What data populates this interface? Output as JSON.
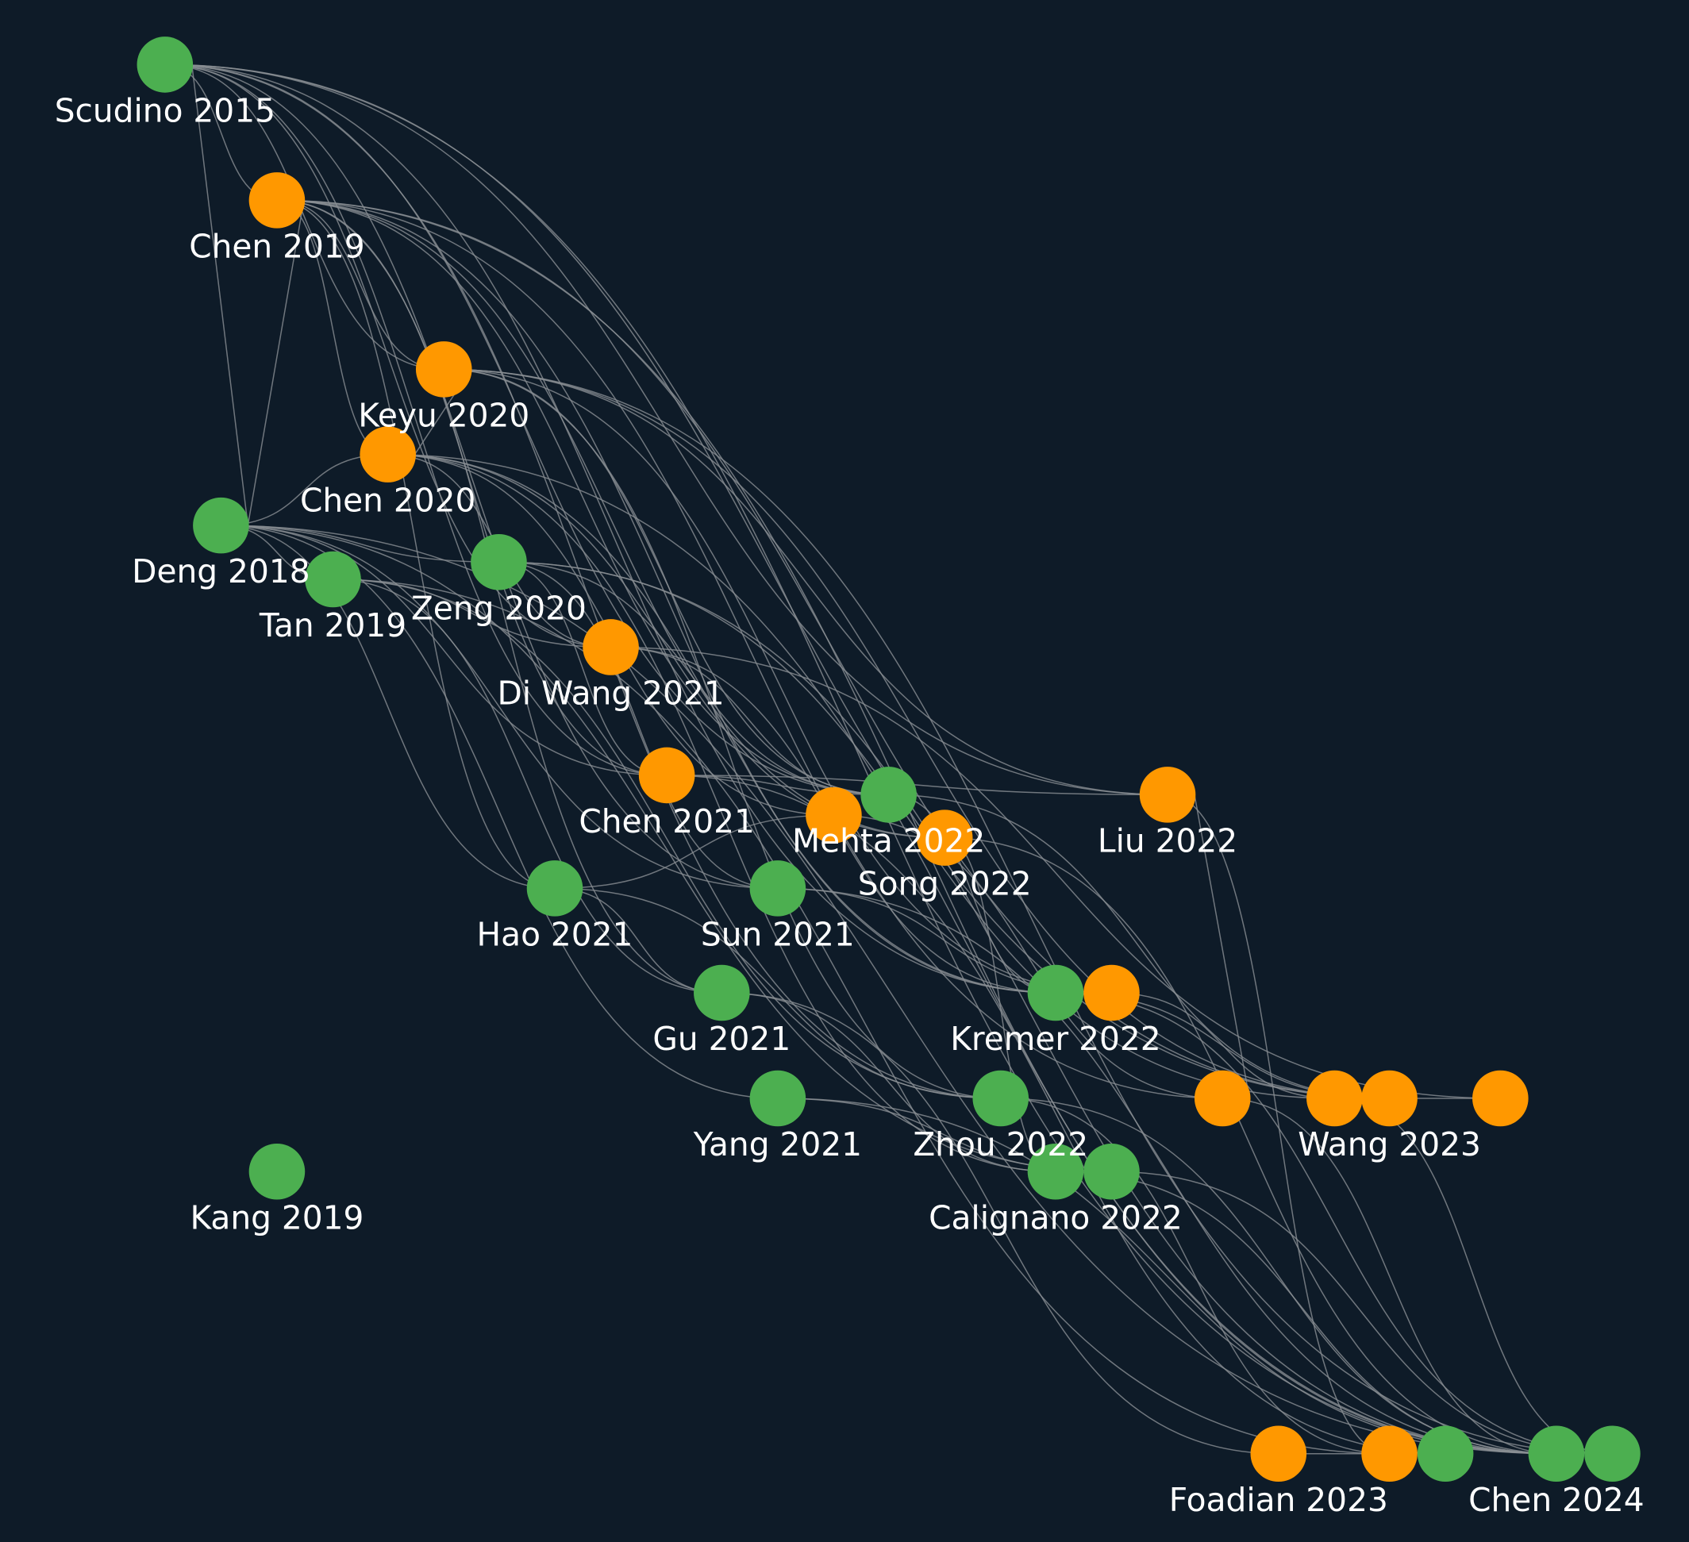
{
  "nodes": [
    {
      "label": "Scudino 2015",
      "color": "#4caf50"
    },
    {
      "label": "Chen 2019",
      "color": "#ff9800"
    },
    {
      "label": "Keyu 2020",
      "color": "#ff9800"
    },
    {
      "label": "Chen 2020",
      "color": "#ff9800"
    },
    {
      "label": "Deng 2018",
      "color": "#4caf50"
    },
    {
      "label": "Tan 2019",
      "color": "#4caf50"
    },
    {
      "label": "Zeng 2020",
      "color": "#4caf50"
    },
    {
      "label": "Di Wang 2021",
      "color": "#ff9800"
    },
    {
      "label": "Chen 2021",
      "color": "#ff9800"
    },
    {
      "color": "#ff9800"
    },
    {
      "label": "Mehta 2022",
      "color": "#4caf50"
    },
    {
      "label": "Song 2022",
      "color": "#ff9800"
    },
    {
      "label": "Liu 2022",
      "color": "#ff9800"
    },
    {
      "label": "Hao 2021",
      "color": "#4caf50"
    },
    {
      "label": "Sun 2021",
      "color": "#4caf50"
    },
    {
      "label": "Gu 2021",
      "color": "#4caf50"
    },
    {
      "label": "Kremer 2022",
      "color": "#4caf50"
    },
    {
      "color": "#ff9800"
    },
    {
      "label": "Yang 2021",
      "color": "#4caf50"
    },
    {
      "label": "Zhou 2022",
      "color": "#4caf50"
    },
    {
      "color": "#ff9800"
    },
    {
      "color": "#ff9800"
    },
    {
      "label": "Wang 2023",
      "color": "#ff9800"
    },
    {
      "color": "#ff9800"
    },
    {
      "label": "Calignano 2022",
      "color": "#4caf50"
    },
    {
      "color": "#4caf50"
    },
    {
      "label": "Kang 2019",
      "color": "#4caf50"
    },
    {
      "label": "Foadian 2023",
      "color": "#ff9800"
    },
    {
      "color": "#ff9800"
    },
    {
      "color": "#4caf50"
    },
    {
      "label": "Chen 2024",
      "color": "#4caf50"
    },
    {
      "color": "#4caf50"
    }
  ]
}
